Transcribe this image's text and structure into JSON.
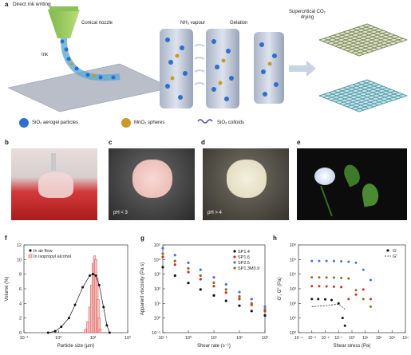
{
  "panel_a": {
    "letter": "a",
    "title": "Direct ink writing",
    "conical_nozzle": "Conical nozzle",
    "ink": "Ink",
    "nh3": "NH₃ vapour",
    "gelation": "Gelation",
    "scd": "Supercritical CO₂ drying",
    "legend_sio2_aerogel": "SiO₂ aerogel particles",
    "legend_mno2": "MnO₂ spheres",
    "legend_sio2_colloids": "SiO₂ colloids"
  },
  "photos": {
    "b": {
      "letter": "b",
      "caption": ""
    },
    "c": {
      "letter": "c",
      "caption": "pH < 3"
    },
    "d": {
      "letter": "d",
      "caption": "pH > 4"
    },
    "e": {
      "letter": "e",
      "caption": ""
    }
  },
  "panel_f": {
    "letter": "f",
    "ylabel": "Volume (%)",
    "xlabel": "Particle size (μm)",
    "legend_air": "In air flow",
    "legend_ipa": "In isopropyl alcohol",
    "yticks": [
      "0",
      "2",
      "4",
      "6",
      "8",
      "10",
      "12"
    ],
    "xticks": [
      "10⁻¹",
      "10⁰",
      "10¹",
      "10²"
    ]
  },
  "panel_g": {
    "letter": "g",
    "ylabel": "Apparent viscosity (Pa s)",
    "xlabel": "Shear rate (s⁻¹)",
    "legend": [
      "SP1.4",
      "SP1.6",
      "SP2.5",
      "SP1.3M0.9"
    ],
    "yticks": [
      "10⁵",
      "10⁴",
      "10³",
      "10²",
      "10¹",
      "10⁰",
      "10⁻¹"
    ],
    "xticks": [
      "10⁻¹",
      "10⁰",
      "10¹",
      "10²",
      "10³"
    ]
  },
  "panel_h": {
    "letter": "h",
    "ylabel": "G′, G″ (Pa)",
    "xlabel": "Shear stress (Pa)",
    "legend_gp": "G′",
    "legend_gpp": "G″",
    "yticks": [
      "10⁶",
      "10⁵",
      "10⁴",
      "10³",
      "10²",
      "10¹",
      "10⁰"
    ],
    "xticks": [
      "10⁻⁴",
      "10⁻³",
      "10⁻²",
      "10⁻¹",
      "10⁰",
      "10¹",
      "10²",
      "10³",
      "10⁴"
    ]
  },
  "chart_data": [
    {
      "type": "line",
      "panel": "f",
      "xlabel": "Particle size (μm)",
      "ylabel": "Volume (%)",
      "xscale": "log",
      "xlim": [
        0.1,
        100
      ],
      "ylim": [
        0,
        12
      ],
      "series": [
        {
          "name": "In air flow",
          "x": [
            0.5,
            0.8,
            1.2,
            2,
            3,
            5,
            8,
            10,
            12,
            15,
            20,
            25,
            30
          ],
          "y": [
            0,
            0.2,
            0.8,
            2,
            3.8,
            6.2,
            7.8,
            8,
            7.8,
            6.5,
            3.5,
            1,
            0
          ]
        },
        {
          "name": "In isopropyl alcohol",
          "kind": "bar",
          "x": [
            6,
            7,
            8,
            9,
            10,
            11,
            12,
            13,
            14,
            15,
            16
          ],
          "y": [
            0.5,
            1.5,
            3.5,
            6.5,
            9.5,
            10.5,
            10,
            7.5,
            4.5,
            2,
            0.5
          ]
        }
      ]
    },
    {
      "type": "scatter",
      "panel": "g",
      "xlabel": "Shear rate (s⁻¹)",
      "ylabel": "Apparent viscosity (Pa s)",
      "xscale": "log",
      "yscale": "log",
      "xlim": [
        0.1,
        1000
      ],
      "ylim": [
        0.1,
        100000
      ],
      "series": [
        {
          "name": "SP1.4",
          "color": "#111111",
          "x": [
            0.1,
            0.3,
            1,
            3,
            10,
            30,
            100,
            300,
            1000
          ],
          "y": [
            3000,
            800,
            250,
            90,
            35,
            15,
            7,
            3,
            1.5
          ]
        },
        {
          "name": "SP1.6",
          "color": "#d62728",
          "x": [
            0.1,
            0.3,
            1,
            3,
            10,
            30,
            100,
            300,
            1000
          ],
          "y": [
            15000,
            4500,
            1400,
            450,
            150,
            55,
            20,
            8,
            3
          ]
        },
        {
          "name": "SP2.5",
          "color": "#4a6fd8",
          "x": [
            0.1,
            0.3,
            1,
            3,
            10,
            30,
            100,
            300,
            1000
          ],
          "y": [
            60000,
            20000,
            6000,
            2000,
            600,
            200,
            60,
            20,
            6
          ]
        },
        {
          "name": "SP1.3M0.9",
          "color": "#8a6d1a",
          "x": [
            0.1,
            0.3,
            1,
            3,
            10,
            30,
            100,
            300,
            1000
          ],
          "y": [
            25000,
            8000,
            2500,
            800,
            260,
            90,
            30,
            10,
            4
          ]
        }
      ]
    },
    {
      "type": "scatter",
      "panel": "h",
      "xlabel": "Shear stress (Pa)",
      "ylabel": "G′, G″ (Pa)",
      "xscale": "log",
      "yscale": "log",
      "xlim": [
        0.0001,
        10000
      ],
      "ylim": [
        1,
        1000000
      ],
      "series": [
        {
          "name": "G′",
          "color": "#111111",
          "x": [
            0.001,
            0.003,
            0.01,
            0.03,
            0.1,
            0.2,
            0.3
          ],
          "y": [
            200,
            200,
            190,
            170,
            100,
            10,
            3
          ]
        },
        {
          "name": "G″",
          "color": "#111111",
          "x": [
            0.001,
            0.01,
            0.1,
            0.3
          ],
          "y": [
            60,
            70,
            90,
            40
          ]
        }
      ]
    }
  ]
}
